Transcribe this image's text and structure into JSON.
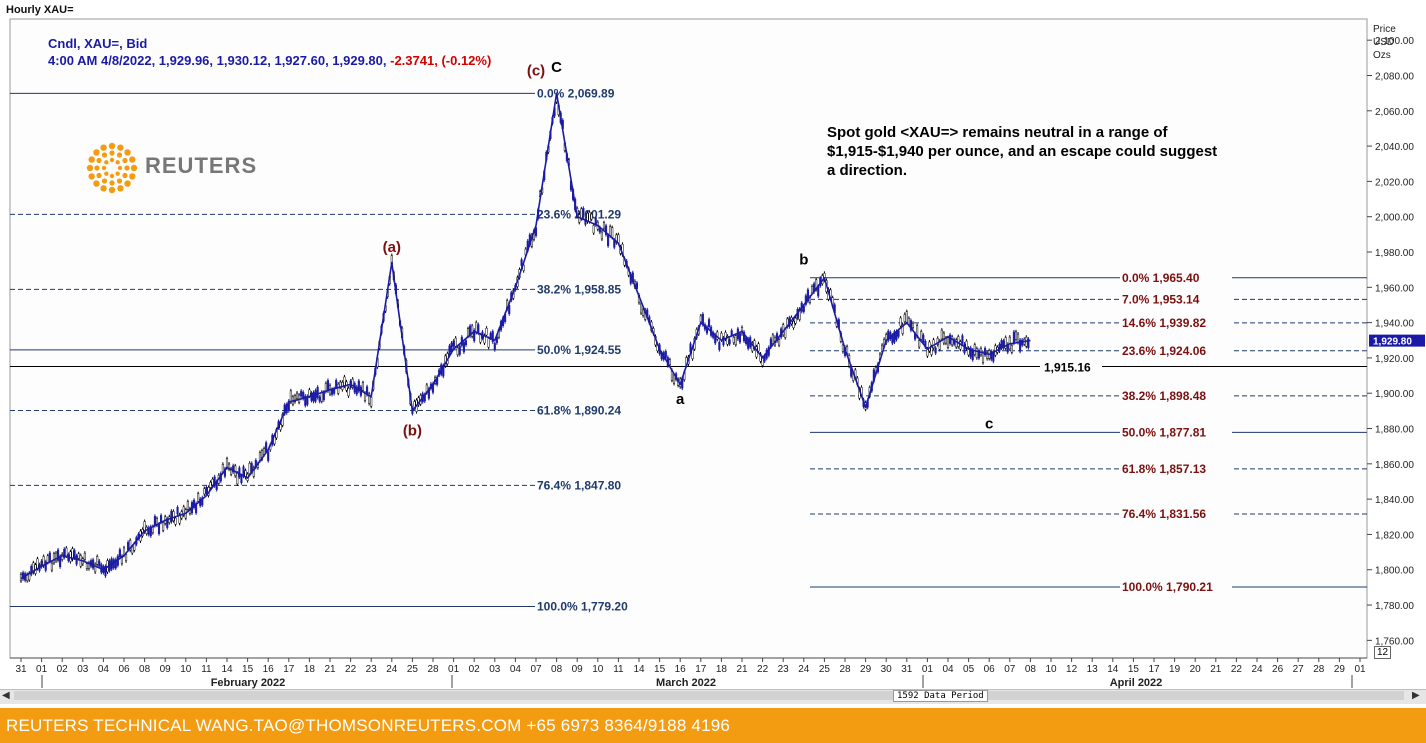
{
  "window": {
    "title": "Hourly XAU="
  },
  "header": {
    "line1": "Cndl, XAU=, Bid",
    "line2_main": "4:00 AM 4/8/2022, 1,929.96, 1,930.12, 1,927.60, 1,929.80, ",
    "line2_change": "-2.3741, (-0.12%)"
  },
  "logo": {
    "text": "REUTERS",
    "color": "#f39c12"
  },
  "annotation": {
    "text": "Spot gold <XAU=> remains neutral in a range of $1,915-$1,940 per ounce, and an escape could suggest a direction."
  },
  "footer": {
    "text": "REUTERS TECHNICAL  WANG.TAO@THOMSONREUTERS.COM  +65 6973 8364/9188 4196"
  },
  "status": {
    "data_period": "1592 Data Period",
    "zoom": "12"
  },
  "colors": {
    "candle_up": "#1a1aa6",
    "candle_black": "#000000",
    "fib_left": "#1f3a6b",
    "fib_right": "#7a1010",
    "wave_red": "#7a1010",
    "last_price_bg": "#1a1aa6",
    "footer": "#f39c12"
  },
  "chart_data": {
    "type": "line",
    "title": "Hourly XAU=",
    "ylabel": "Price USD Ozs",
    "ylim": [
      1750,
      2112
    ],
    "yticks": [
      1760,
      1780,
      1800,
      1820,
      1840,
      1860,
      1880,
      1900,
      1920,
      1940,
      1960,
      1980,
      2000,
      2020,
      2040,
      2060,
      2080,
      2100
    ],
    "ytick_labels": [
      "1,760.00",
      "1,780.00",
      "1,800.00",
      "1,820.00",
      "1,840.00",
      "1,860.00",
      "1,880.00",
      "1,900.00",
      "1,920.00",
      "1,940.00",
      "1,960.00",
      "1,980.00",
      "2,000.00",
      "2,020.00",
      "2,040.00",
      "2,060.00",
      "2,080.00",
      "2,100.00"
    ],
    "y_axis_title": [
      "Price",
      "USD",
      "Ozs"
    ],
    "last_price": {
      "value": 1929.8,
      "label": "1,929.80"
    },
    "x_ticks": [
      "31",
      "01",
      "02",
      "03",
      "04",
      "06",
      "08",
      "09",
      "10",
      "11",
      "14",
      "15",
      "16",
      "17",
      "18",
      "21",
      "22",
      "23",
      "24",
      "25",
      "28",
      "01",
      "02",
      "03",
      "04",
      "07",
      "08",
      "09",
      "10",
      "11",
      "14",
      "15",
      "16",
      "17",
      "18",
      "21",
      "22",
      "23",
      "24",
      "25",
      "28",
      "29",
      "30",
      "31",
      "01",
      "04",
      "05",
      "06",
      "07",
      "08",
      "10",
      "12",
      "13",
      "14",
      "15",
      "17",
      "19",
      "20",
      "21",
      "22",
      "24",
      "26",
      "27",
      "28",
      "29",
      "01"
    ],
    "months": [
      "February 2022",
      "March 2022",
      "April 2022"
    ],
    "price_path": [
      {
        "d": "2022-01-31",
        "v": 1795
      },
      {
        "d": "2022-02-01",
        "v": 1802
      },
      {
        "d": "2022-02-02",
        "v": 1808
      },
      {
        "d": "2022-02-03",
        "v": 1805
      },
      {
        "d": "2022-02-04",
        "v": 1800
      },
      {
        "d": "2022-02-06",
        "v": 1808
      },
      {
        "d": "2022-02-08",
        "v": 1822
      },
      {
        "d": "2022-02-09",
        "v": 1828
      },
      {
        "d": "2022-02-10",
        "v": 1832
      },
      {
        "d": "2022-02-11",
        "v": 1842
      },
      {
        "d": "2022-02-14",
        "v": 1858
      },
      {
        "d": "2022-02-15",
        "v": 1852
      },
      {
        "d": "2022-02-16",
        "v": 1868
      },
      {
        "d": "2022-02-17",
        "v": 1895
      },
      {
        "d": "2022-02-18",
        "v": 1898
      },
      {
        "d": "2022-02-21",
        "v": 1902
      },
      {
        "d": "2022-02-22",
        "v": 1905
      },
      {
        "d": "2022-02-23",
        "v": 1898
      },
      {
        "d": "2022-02-24",
        "v": 1974
      },
      {
        "d": "2022-02-25",
        "v": 1890
      },
      {
        "d": "2022-02-28",
        "v": 1905
      },
      {
        "d": "2022-03-01",
        "v": 1925
      },
      {
        "d": "2022-03-02",
        "v": 1935
      },
      {
        "d": "2022-03-03",
        "v": 1930
      },
      {
        "d": "2022-03-04",
        "v": 1960
      },
      {
        "d": "2022-03-07",
        "v": 1995
      },
      {
        "d": "2022-03-08",
        "v": 2069.89
      },
      {
        "d": "2022-03-09",
        "v": 2000
      },
      {
        "d": "2022-03-10",
        "v": 1995
      },
      {
        "d": "2022-03-11",
        "v": 1985
      },
      {
        "d": "2022-03-14",
        "v": 1955
      },
      {
        "d": "2022-03-15",
        "v": 1925
      },
      {
        "d": "2022-03-16",
        "v": 1905
      },
      {
        "d": "2022-03-17",
        "v": 1940
      },
      {
        "d": "2022-03-18",
        "v": 1930
      },
      {
        "d": "2022-03-21",
        "v": 1935
      },
      {
        "d": "2022-03-22",
        "v": 1920
      },
      {
        "d": "2022-03-23",
        "v": 1935
      },
      {
        "d": "2022-03-24",
        "v": 1950
      },
      {
        "d": "2022-03-25",
        "v": 1965.4
      },
      {
        "d": "2022-03-28",
        "v": 1925
      },
      {
        "d": "2022-03-29",
        "v": 1892
      },
      {
        "d": "2022-03-30",
        "v": 1930
      },
      {
        "d": "2022-03-31",
        "v": 1940
      },
      {
        "d": "2022-04-01",
        "v": 1925
      },
      {
        "d": "2022-04-04",
        "v": 1932
      },
      {
        "d": "2022-04-05",
        "v": 1925
      },
      {
        "d": "2022-04-06",
        "v": 1922
      },
      {
        "d": "2022-04-07",
        "v": 1928
      },
      {
        "d": "2022-04-08",
        "v": 1929.8
      }
    ],
    "fib_left": [
      {
        "pct": "0.0%",
        "value": 2069.89,
        "label": "2,069.89",
        "line": "solid"
      },
      {
        "pct": "23.6%",
        "value": 2001.29,
        "label": "2,001.29",
        "line": "dashed"
      },
      {
        "pct": "38.2%",
        "value": 1958.85,
        "label": "1,958.85",
        "line": "dashed"
      },
      {
        "pct": "50.0%",
        "value": 1924.55,
        "label": "1,924.55",
        "line": "solid"
      },
      {
        "pct": "61.8%",
        "value": 1890.24,
        "label": "1,890.24",
        "line": "dashed"
      },
      {
        "pct": "76.4%",
        "value": 1847.8,
        "label": "1,847.80",
        "line": "dashed"
      },
      {
        "pct": "100.0%",
        "value": 1779.2,
        "label": "1,779.20",
        "line": "solid"
      }
    ],
    "fib_right": [
      {
        "pct": "0.0%",
        "value": 1965.4,
        "label": "1,965.40",
        "line": "solid"
      },
      {
        "pct": "7.0%",
        "value": 1953.14,
        "label": "1,953.14",
        "line": "dashed"
      },
      {
        "pct": "14.6%",
        "value": 1939.82,
        "label": "1,939.82",
        "line": "dashed"
      },
      {
        "pct": "23.6%",
        "value": 1924.06,
        "label": "1,924.06",
        "line": "dashed"
      },
      {
        "pct": "38.2%",
        "value": 1898.48,
        "label": "1,898.48",
        "line": "dashed"
      },
      {
        "pct": "50.0%",
        "value": 1877.81,
        "label": "1,877.81",
        "line": "solid"
      },
      {
        "pct": "61.8%",
        "value": 1857.13,
        "label": "1,857.13",
        "line": "dashed"
      },
      {
        "pct": "76.4%",
        "value": 1831.56,
        "label": "1,831.56",
        "line": "dashed"
      },
      {
        "pct": "100.0%",
        "value": 1790.21,
        "label": "1,790.21",
        "line": "solid"
      }
    ],
    "support_line": {
      "value": 1915.16,
      "label": "1,915.16"
    },
    "wave_labels": [
      {
        "text": "(a)",
        "d": "2022-02-24",
        "v": 1980,
        "color": "red"
      },
      {
        "text": "(b)",
        "d": "2022-02-25",
        "v": 1876,
        "color": "red"
      },
      {
        "text": "(c)",
        "d": "2022-03-07",
        "v": 2080,
        "color": "red"
      },
      {
        "text": "C",
        "d": "2022-03-08",
        "v": 2082,
        "color": "black"
      },
      {
        "text": "a",
        "d": "2022-03-16",
        "v": 1894,
        "color": "black"
      },
      {
        "text": "b",
        "d": "2022-03-24",
        "v": 1973,
        "color": "black"
      },
      {
        "text": "c",
        "d": "2022-04-06",
        "v": 1880,
        "color": "black"
      }
    ]
  }
}
